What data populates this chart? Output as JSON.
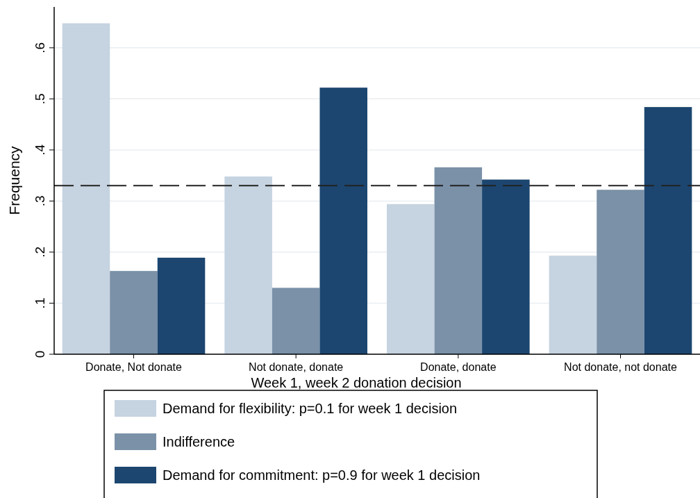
{
  "chart_data": {
    "type": "bar",
    "xlabel": "Week 1, week 2 donation decision",
    "ylabel": "Frequency",
    "categories": [
      "Donate, Not donate",
      "Not donate, donate",
      "Donate, donate",
      "Not donate, not donate"
    ],
    "series": [
      {
        "name": "Demand for flexibility: p=0.1 for week 1 decision",
        "color": "#c6d3e0",
        "values": [
          0.648,
          0.348,
          0.294,
          0.193
        ]
      },
      {
        "name": "Indifference",
        "color": "#7a91a8",
        "values": [
          0.163,
          0.13,
          0.366,
          0.322
        ]
      },
      {
        "name": "Demand for commitment: p=0.9 for week 1 decision",
        "color": "#1c4670",
        "values": [
          0.189,
          0.522,
          0.342,
          0.484
        ]
      }
    ],
    "ylim": [
      0,
      0.68
    ],
    "yticks": [
      {
        "value": 0,
        "label": "0"
      },
      {
        "value": 0.1,
        "label": ".1"
      },
      {
        "value": 0.2,
        "label": ".2"
      },
      {
        "value": 0.3,
        "label": ".3"
      },
      {
        "value": 0.4,
        "label": ".4"
      },
      {
        "value": 0.5,
        "label": ".5"
      },
      {
        "value": 0.6,
        "label": ".6"
      }
    ],
    "ref_lines": [
      {
        "axis": "y",
        "value": 0.33,
        "line_style": "dashed",
        "color": "#222222"
      }
    ],
    "grid": "y",
    "legend": "bottom"
  }
}
